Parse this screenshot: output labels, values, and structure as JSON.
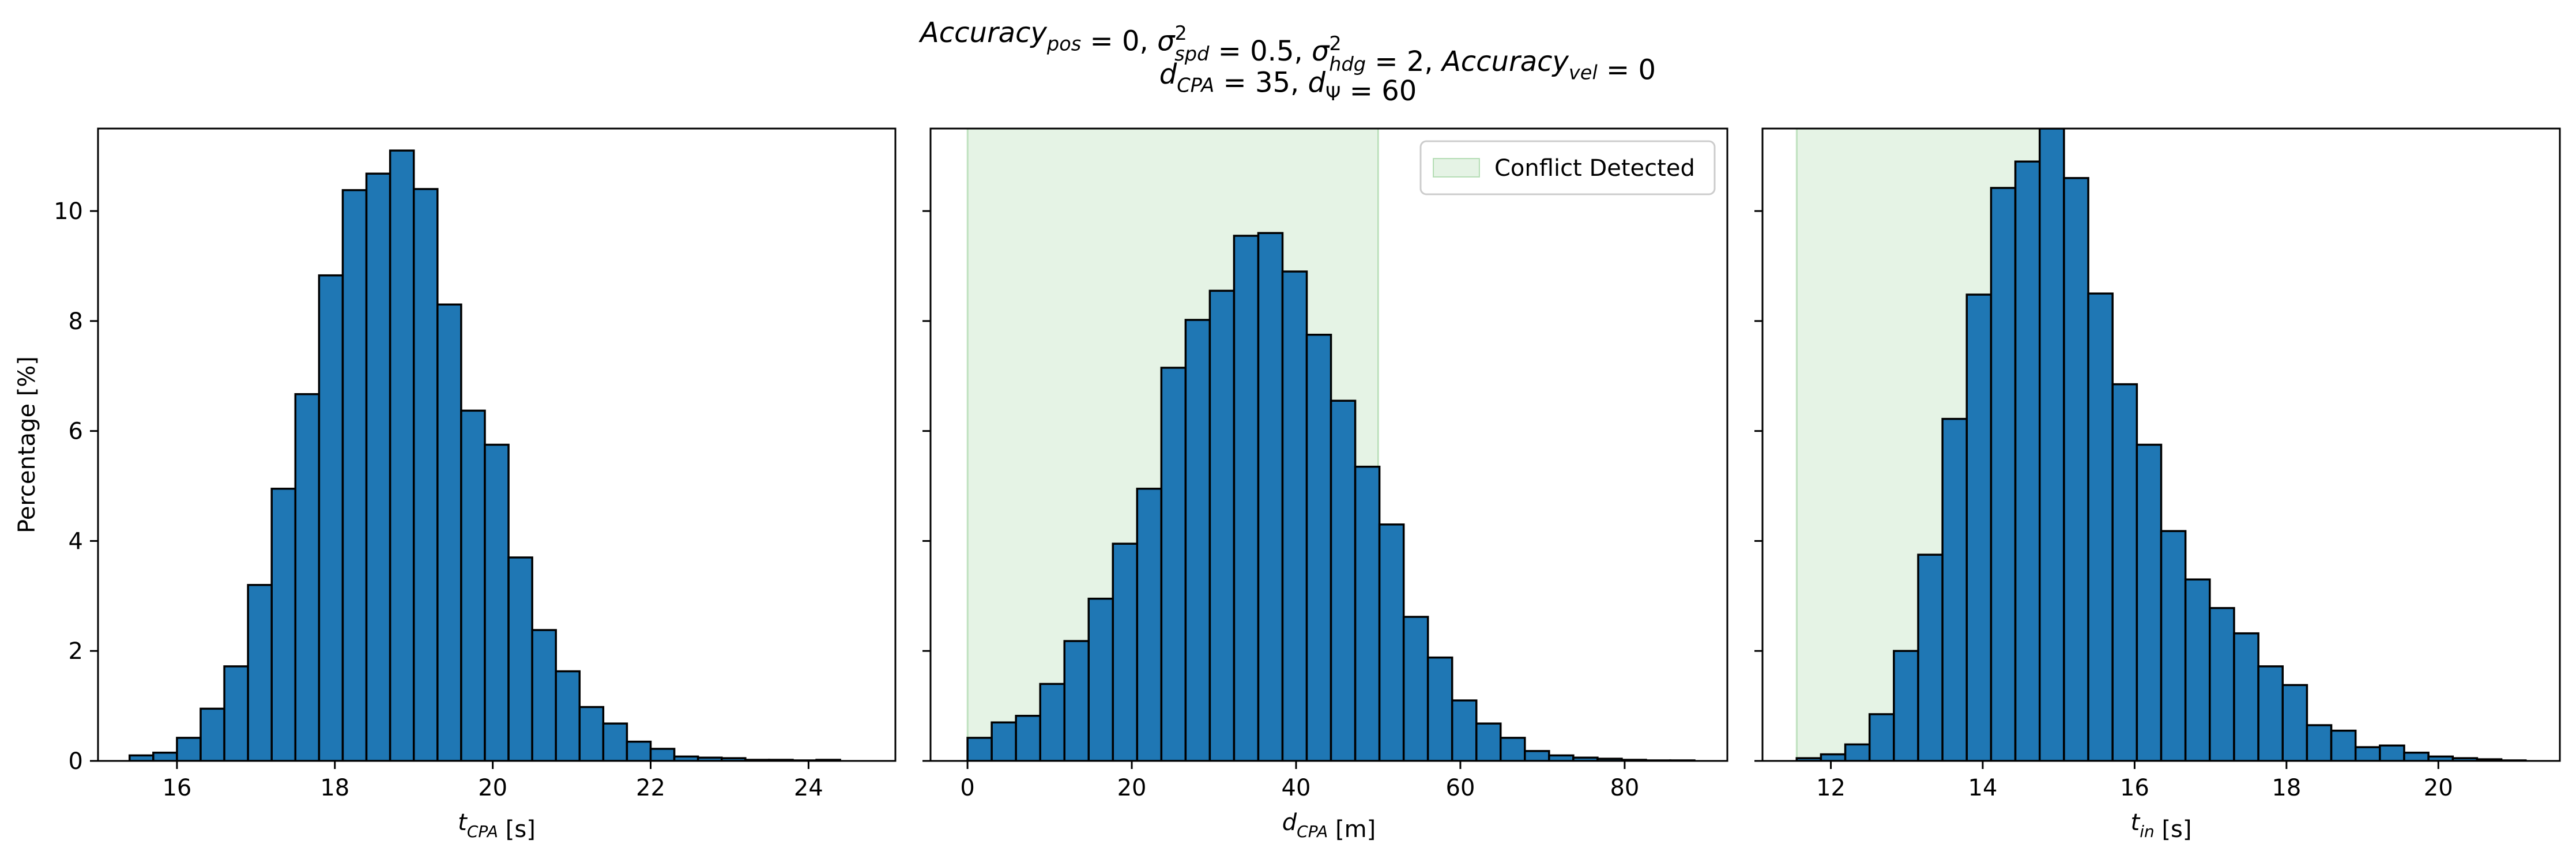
{
  "figure": {
    "title_line1": "Accuracy_pos = 0, σ²_spd = 0.5, σ²_hdg = 2, Accuracy_vel = 0",
    "title_line2": "d_CPA = 35, d_Ψ = 60"
  },
  "chart_data": [
    {
      "type": "bar",
      "xlabel": "t_CPA [s]",
      "ylabel": "Percentage [%]",
      "xlim": [
        15.0,
        25.1
      ],
      "ylim": [
        0,
        11.5
      ],
      "xticks": [
        16,
        18,
        20,
        22,
        24
      ],
      "yticks": [
        0,
        2,
        4,
        6,
        8,
        10
      ],
      "bar_color": "#1f77b4",
      "edge_color": "#000000",
      "bin_start": 15.4,
      "bin_width": 0.3,
      "values": [
        0.1,
        0.15,
        0.42,
        0.95,
        1.72,
        3.2,
        4.95,
        6.67,
        8.83,
        10.38,
        10.68,
        11.1,
        10.4,
        8.3,
        6.37,
        5.75,
        3.7,
        2.38,
        1.63,
        0.98,
        0.68,
        0.35,
        0.22,
        0.08,
        0.06,
        0.05,
        0.02,
        0.02,
        0.01,
        0.02
      ]
    },
    {
      "type": "bar",
      "xlabel": "d_CPA [m]",
      "ylabel": "",
      "xlim": [
        -4.5,
        92.5
      ],
      "ylim": [
        0,
        11.5
      ],
      "xticks": [
        0,
        20,
        40,
        60,
        80
      ],
      "yticks": [
        0,
        2,
        4,
        6,
        8,
        10
      ],
      "bar_color": "#1f77b4",
      "edge_color": "#000000",
      "bin_start": 0,
      "bin_width": 2.95,
      "values": [
        0.42,
        0.7,
        0.82,
        1.4,
        2.18,
        2.95,
        3.95,
        4.95,
        7.15,
        8.02,
        8.55,
        9.55,
        9.6,
        8.9,
        7.75,
        6.55,
        5.35,
        4.3,
        2.62,
        1.88,
        1.1,
        0.68,
        0.42,
        0.18,
        0.1,
        0.06,
        0.04,
        0.02,
        0.01,
        0.01
      ],
      "shaded_region": {
        "x0": 0,
        "x1": 50,
        "color": "#2ca02c",
        "opacity": 0.12
      },
      "legend": {
        "label": "Conflict Detected",
        "placement": "upper right"
      }
    },
    {
      "type": "bar",
      "xlabel": "t_in [s]",
      "ylabel": "",
      "xlim": [
        11.1,
        21.6
      ],
      "ylim": [
        0,
        11.5
      ],
      "xticks": [
        12,
        14,
        16,
        18,
        20
      ],
      "yticks": [
        0,
        2,
        4,
        6,
        8,
        10
      ],
      "bar_color": "#1f77b4",
      "edge_color": "#000000",
      "bin_start": 11.55,
      "bin_width": 0.32,
      "values": [
        0.05,
        0.12,
        0.3,
        0.85,
        2.0,
        3.75,
        6.22,
        8.48,
        10.42,
        10.9,
        11.5,
        10.6,
        8.5,
        6.85,
        5.75,
        4.18,
        3.3,
        2.78,
        2.32,
        1.72,
        1.38,
        0.65,
        0.55,
        0.25,
        0.28,
        0.15,
        0.08,
        0.05,
        0.03,
        0.01
      ],
      "shaded_region": {
        "x0": 11.55,
        "x1": 15.0,
        "color": "#2ca02c",
        "opacity": 0.12
      }
    }
  ]
}
